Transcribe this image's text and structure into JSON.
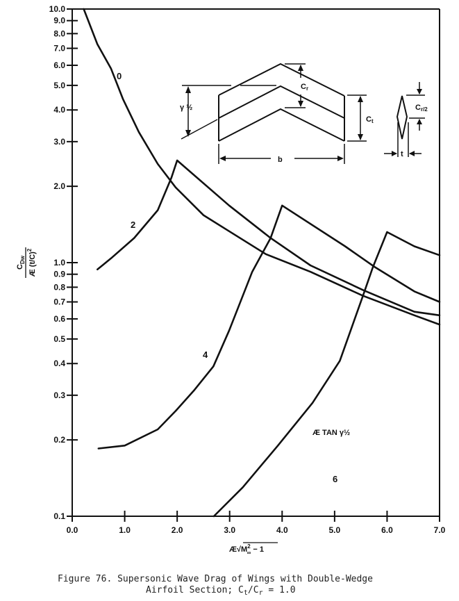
{
  "chart_data": {
    "type": "line",
    "title": "",
    "xlabel": "AR√(M∞² − 1)",
    "ylabel": "C_Dw / AR (t/C)²",
    "ylabel_num": "C",
    "ylabel_num_sub": "Dw",
    "ylabel_den": "Æ (t/C)",
    "ylabel_den_sup": "2",
    "xlabel_prefix": "Æ",
    "xlabel_M": "M",
    "xlabel_sup": "2",
    "xlabel_sub": "∞",
    "xlabel_tail": " − 1",
    "xlim": [
      0,
      7
    ],
    "ylim": [
      0.1,
      10
    ],
    "yscale": "log",
    "grid": false,
    "x_ticks": [
      "0.0",
      "1.0",
      "2.0",
      "3.0",
      "4.0",
      "5.0",
      "6.0",
      "7.0"
    ],
    "y_ticks": [
      "10.0",
      "9.0",
      "8.0",
      "7.0",
      "6.0",
      "5.0",
      "4.0",
      "3.0",
      "2.0",
      "1.0",
      "0.9",
      "0.8",
      "0.7",
      "0.6",
      "0.5",
      "0.4",
      "0.3",
      "0.2",
      "0.1"
    ],
    "parameter_label": "Æ TAN γ½",
    "series": [
      {
        "name": "0",
        "points": [
          [
            0.22,
            10
          ],
          [
            0.48,
            7.26
          ],
          [
            0.74,
            5.82
          ],
          [
            0.97,
            4.4
          ],
          [
            1.27,
            3.27
          ],
          [
            1.63,
            2.45
          ],
          [
            1.97,
            1.98
          ],
          [
            2.5,
            1.54
          ],
          [
            2.99,
            1.33
          ],
          [
            3.69,
            1.08
          ],
          [
            4.54,
            0.92
          ],
          [
            5.54,
            0.74
          ],
          [
            6.52,
            0.62
          ],
          [
            7.0,
            0.57
          ]
        ]
      },
      {
        "name": "2",
        "points": [
          [
            0.48,
            0.94
          ],
          [
            0.74,
            1.04
          ],
          [
            1.18,
            1.25
          ],
          [
            1.63,
            1.61
          ],
          [
            1.89,
            2.16
          ],
          [
            2.0,
            2.53
          ],
          [
            2.99,
            1.68
          ],
          [
            3.78,
            1.25
          ],
          [
            4.54,
            0.975
          ],
          [
            5.54,
            0.78
          ],
          [
            6.52,
            0.64
          ],
          [
            7.0,
            0.62
          ]
        ]
      },
      {
        "name": "4",
        "points": [
          [
            0.5,
            0.185
          ],
          [
            1.0,
            0.19
          ],
          [
            1.63,
            0.22
          ],
          [
            1.97,
            0.26
          ],
          [
            2.33,
            0.315
          ],
          [
            2.69,
            0.39
          ],
          [
            2.99,
            0.54
          ],
          [
            3.43,
            0.92
          ],
          [
            3.78,
            1.25
          ],
          [
            4.0,
            1.68
          ],
          [
            5.2,
            1.16
          ],
          [
            5.77,
            0.96
          ],
          [
            6.52,
            0.77
          ],
          [
            7.0,
            0.7
          ]
        ]
      },
      {
        "name": "6",
        "points": [
          [
            2.7,
            0.1
          ],
          [
            3.25,
            0.13
          ],
          [
            3.92,
            0.19
          ],
          [
            4.58,
            0.28
          ],
          [
            5.1,
            0.41
          ],
          [
            5.54,
            0.74
          ],
          [
            5.73,
            0.96
          ],
          [
            6.0,
            1.32
          ],
          [
            6.52,
            1.16
          ],
          [
            7.0,
            1.07
          ]
        ]
      }
    ]
  },
  "inset": {
    "cr": "C",
    "cr_sub": "r",
    "ct": "C",
    "ct_sub": "t",
    "gamma": "γ ½",
    "b": "b",
    "t": "t",
    "cr2": "C",
    "cr2_sub": "r/2"
  },
  "caption": {
    "line1": "Figure 76.  Supersonic Wave Drag of Wings with Double-Wedge",
    "line2_a": "Airfoil Section;  C",
    "line2_sub1": "t",
    "line2_b": "/C",
    "line2_sub2": "r",
    "line2_c": " = 1.0"
  }
}
